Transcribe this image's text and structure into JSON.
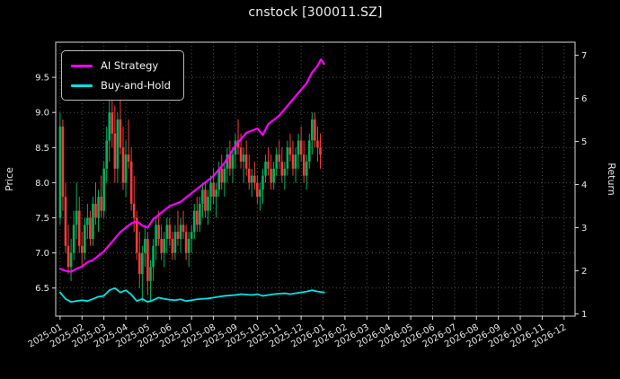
{
  "chart_data": {
    "type": "candlestick+line",
    "title": "cnstock [300011.SZ]",
    "left_axis": {
      "label": "Price",
      "ticks": [
        6.5,
        7.0,
        7.5,
        8.0,
        8.5,
        9.0,
        9.5
      ],
      "range": [
        6.1,
        10.0
      ]
    },
    "right_axis": {
      "label": "Return",
      "ticks": [
        1,
        2,
        3,
        4,
        5,
        6,
        7
      ],
      "range": [
        0.95,
        7.3
      ]
    },
    "x_axis": {
      "range_months": [
        -0.2,
        23.5
      ],
      "tick_labels": [
        "2025-01",
        "2025-02",
        "2025-03",
        "2025-04",
        "2025-05",
        "2025-06",
        "2025-07",
        "2025-08",
        "2025-09",
        "2025-10",
        "2025-11",
        "2025-12",
        "2026-01",
        "2026-02",
        "2026-03",
        "2026-04",
        "2026-05",
        "2026-06",
        "2026-07",
        "2026-08",
        "2026-09",
        "2026-10",
        "2026-11",
        "2026-12"
      ]
    },
    "legend": [
      {
        "label": "AI Strategy",
        "color": "#ff00ff"
      },
      {
        "label": "Buy-and-Hold",
        "color": "#00e5e5"
      }
    ],
    "colors": {
      "background": "#000000",
      "text": "#e8e8e8",
      "grid": "#5a5a5a",
      "spine": "#d9d9d9",
      "up": "#00b25e",
      "down": "#f33c3c"
    },
    "candles": [
      [
        0.0,
        7.5,
        9.0,
        7.4,
        8.8
      ],
      [
        0.125,
        8.8,
        8.9,
        7.6,
        7.8
      ],
      [
        0.25,
        7.8,
        8.0,
        7.0,
        7.1
      ],
      [
        0.375,
        7.1,
        7.4,
        6.7,
        6.8
      ],
      [
        0.5,
        6.8,
        7.2,
        6.6,
        7.0
      ],
      [
        0.625,
        7.0,
        7.6,
        6.9,
        7.4
      ],
      [
        0.75,
        7.4,
        8.0,
        7.2,
        7.6
      ],
      [
        0.875,
        7.6,
        7.8,
        7.0,
        7.1
      ],
      [
        1.0,
        7.1,
        7.3,
        6.8,
        7.0
      ],
      [
        1.125,
        7.0,
        7.5,
        6.9,
        7.4
      ],
      [
        1.25,
        7.4,
        7.7,
        7.2,
        7.5
      ],
      [
        1.375,
        7.5,
        7.6,
        7.1,
        7.2
      ],
      [
        1.5,
        7.2,
        7.8,
        7.1,
        7.7
      ],
      [
        1.625,
        7.7,
        8.0,
        7.4,
        7.5
      ],
      [
        1.75,
        7.5,
        7.9,
        7.3,
        7.8
      ],
      [
        1.875,
        7.8,
        8.1,
        7.5,
        7.6
      ],
      [
        2.0,
        7.6,
        8.3,
        7.5,
        8.2
      ],
      [
        2.125,
        8.2,
        8.8,
        8.0,
        8.6
      ],
      [
        2.25,
        8.6,
        9.2,
        8.3,
        9.0
      ],
      [
        2.375,
        9.0,
        9.4,
        8.5,
        8.7
      ],
      [
        2.5,
        8.7,
        9.1,
        8.0,
        8.2
      ],
      [
        2.625,
        8.2,
        9.0,
        8.0,
        8.9
      ],
      [
        2.75,
        8.9,
        9.3,
        8.4,
        8.5
      ],
      [
        2.875,
        8.5,
        8.8,
        7.9,
        8.0
      ],
      [
        3.0,
        8.0,
        8.6,
        7.8,
        8.4
      ],
      [
        3.125,
        8.4,
        8.9,
        8.2,
        8.3
      ],
      [
        3.25,
        8.3,
        8.5,
        7.6,
        7.7
      ],
      [
        3.375,
        7.7,
        8.1,
        7.3,
        7.5
      ],
      [
        3.5,
        7.5,
        7.6,
        6.9,
        7.0
      ],
      [
        3.625,
        7.0,
        7.3,
        6.5,
        6.7
      ],
      [
        3.75,
        6.7,
        7.1,
        6.3,
        7.0
      ],
      [
        3.875,
        7.0,
        7.4,
        6.8,
        7.2
      ],
      [
        4.0,
        7.2,
        7.3,
        6.4,
        6.6
      ],
      [
        4.125,
        6.6,
        6.9,
        6.3,
        6.8
      ],
      [
        4.25,
        6.8,
        7.2,
        6.6,
        7.1
      ],
      [
        4.375,
        7.1,
        7.5,
        6.9,
        7.4
      ],
      [
        4.5,
        7.4,
        7.6,
        7.1,
        7.2
      ],
      [
        4.625,
        7.2,
        7.4,
        6.9,
        7.0
      ],
      [
        4.75,
        7.0,
        7.3,
        6.8,
        7.2
      ],
      [
        4.875,
        7.2,
        7.5,
        7.0,
        7.4
      ],
      [
        5.0,
        7.4,
        7.5,
        7.1,
        7.2
      ],
      [
        5.125,
        7.2,
        7.3,
        6.9,
        7.0
      ],
      [
        5.25,
        7.0,
        7.4,
        6.9,
        7.3
      ],
      [
        5.375,
        7.3,
        7.6,
        7.1,
        7.2
      ],
      [
        5.5,
        7.2,
        7.5,
        7.0,
        7.4
      ],
      [
        5.625,
        7.4,
        7.6,
        7.2,
        7.3
      ],
      [
        5.75,
        7.3,
        7.4,
        6.9,
        7.0
      ],
      [
        5.875,
        7.0,
        7.3,
        6.8,
        7.2
      ],
      [
        6.0,
        7.2,
        7.4,
        7.0,
        7.3
      ],
      [
        6.125,
        7.3,
        7.7,
        7.2,
        7.6
      ],
      [
        6.25,
        7.6,
        7.8,
        7.3,
        7.4
      ],
      [
        6.375,
        7.4,
        7.8,
        7.3,
        7.7
      ],
      [
        6.5,
        7.7,
        8.0,
        7.5,
        7.9
      ],
      [
        6.625,
        7.9,
        8.0,
        7.5,
        7.6
      ],
      [
        6.75,
        7.6,
        7.9,
        7.4,
        7.8
      ],
      [
        6.875,
        7.8,
        8.1,
        7.6,
        8.0
      ],
      [
        7.0,
        8.0,
        8.2,
        7.7,
        7.8
      ],
      [
        7.125,
        7.8,
        8.0,
        7.5,
        7.9
      ],
      [
        7.25,
        7.9,
        8.3,
        7.8,
        8.2
      ],
      [
        7.375,
        8.2,
        8.4,
        7.9,
        8.0
      ],
      [
        7.5,
        8.0,
        8.3,
        7.8,
        8.2
      ],
      [
        7.625,
        8.2,
        8.5,
        8.0,
        8.4
      ],
      [
        7.75,
        8.4,
        8.6,
        8.1,
        8.2
      ],
      [
        7.875,
        8.2,
        8.5,
        8.0,
        8.4
      ],
      [
        8.0,
        8.4,
        8.7,
        8.2,
        8.6
      ],
      [
        8.125,
        8.6,
        8.9,
        8.4,
        8.5
      ],
      [
        8.25,
        8.5,
        8.7,
        8.2,
        8.3
      ],
      [
        8.375,
        8.3,
        8.5,
        8.0,
        8.4
      ],
      [
        8.5,
        8.4,
        8.6,
        8.1,
        8.2
      ],
      [
        8.625,
        8.2,
        8.4,
        7.9,
        8.0
      ],
      [
        8.75,
        8.0,
        8.2,
        7.8,
        8.1
      ],
      [
        8.875,
        8.1,
        8.3,
        7.9,
        8.0
      ],
      [
        9.0,
        8.0,
        8.1,
        7.7,
        7.8
      ],
      [
        9.125,
        7.8,
        8.0,
        7.6,
        7.9
      ],
      [
        9.25,
        7.9,
        8.2,
        7.7,
        8.1
      ],
      [
        9.375,
        8.1,
        8.4,
        8.0,
        8.3
      ],
      [
        9.5,
        8.3,
        8.5,
        8.1,
        8.2
      ],
      [
        9.625,
        8.2,
        8.4,
        7.9,
        8.0
      ],
      [
        9.75,
        8.0,
        8.3,
        7.9,
        8.2
      ],
      [
        9.875,
        8.2,
        8.5,
        8.1,
        8.4
      ],
      [
        10.0,
        8.4,
        8.6,
        8.2,
        8.3
      ],
      [
        10.125,
        8.3,
        8.5,
        8.0,
        8.1
      ],
      [
        10.25,
        8.1,
        8.3,
        7.9,
        8.2
      ],
      [
        10.375,
        8.2,
        8.6,
        8.1,
        8.5
      ],
      [
        10.5,
        8.5,
        8.7,
        8.3,
        8.4
      ],
      [
        10.625,
        8.4,
        8.6,
        8.1,
        8.2
      ],
      [
        10.75,
        8.2,
        8.5,
        8.0,
        8.4
      ],
      [
        10.875,
        8.4,
        8.7,
        8.2,
        8.6
      ],
      [
        11.0,
        8.6,
        8.8,
        8.3,
        8.4
      ],
      [
        11.125,
        8.4,
        8.6,
        8.0,
        8.1
      ],
      [
        11.25,
        8.1,
        8.4,
        7.9,
        8.3
      ],
      [
        11.375,
        8.3,
        8.7,
        8.2,
        8.6
      ],
      [
        11.5,
        8.6,
        9.0,
        8.4,
        8.9
      ],
      [
        11.625,
        8.9,
        9.0,
        8.5,
        8.6
      ],
      [
        11.75,
        8.6,
        8.8,
        8.3,
        8.5
      ],
      [
        11.875,
        8.5,
        8.7,
        8.2,
        8.4
      ]
    ],
    "series": [
      {
        "name": "AI Strategy",
        "axis": "right",
        "color": "#ff00ff",
        "width": 2.2,
        "points": [
          [
            0,
            2.05
          ],
          [
            0.25,
            2.0
          ],
          [
            0.5,
            1.98
          ],
          [
            0.75,
            2.05
          ],
          [
            1,
            2.1
          ],
          [
            1.25,
            2.2
          ],
          [
            1.5,
            2.25
          ],
          [
            1.75,
            2.35
          ],
          [
            2,
            2.45
          ],
          [
            2.25,
            2.6
          ],
          [
            2.5,
            2.75
          ],
          [
            2.75,
            2.9
          ],
          [
            3,
            3.0
          ],
          [
            3.25,
            3.1
          ],
          [
            3.5,
            3.15
          ],
          [
            3.75,
            3.05
          ],
          [
            4,
            3.0
          ],
          [
            4.25,
            3.2
          ],
          [
            4.5,
            3.3
          ],
          [
            4.75,
            3.4
          ],
          [
            5,
            3.5
          ],
          [
            5.25,
            3.55
          ],
          [
            5.5,
            3.6
          ],
          [
            5.75,
            3.7
          ],
          [
            6,
            3.8
          ],
          [
            6.25,
            3.9
          ],
          [
            6.5,
            4.0
          ],
          [
            6.75,
            4.1
          ],
          [
            7,
            4.2
          ],
          [
            7.25,
            4.35
          ],
          [
            7.5,
            4.5
          ],
          [
            7.75,
            4.7
          ],
          [
            8,
            4.9
          ],
          [
            8.25,
            5.05
          ],
          [
            8.5,
            5.2
          ],
          [
            8.75,
            5.25
          ],
          [
            9,
            5.3
          ],
          [
            9.25,
            5.15
          ],
          [
            9.5,
            5.4
          ],
          [
            9.75,
            5.5
          ],
          [
            10,
            5.6
          ],
          [
            10.25,
            5.75
          ],
          [
            10.5,
            5.9
          ],
          [
            10.75,
            6.05
          ],
          [
            11,
            6.2
          ],
          [
            11.25,
            6.35
          ],
          [
            11.5,
            6.6
          ],
          [
            11.75,
            6.75
          ],
          [
            11.9,
            6.9
          ],
          [
            12.05,
            6.8
          ]
        ]
      },
      {
        "name": "Buy-and-Hold",
        "axis": "right",
        "color": "#00e5e5",
        "width": 1.8,
        "points": [
          [
            0,
            1.5
          ],
          [
            0.25,
            1.35
          ],
          [
            0.5,
            1.28
          ],
          [
            0.75,
            1.3
          ],
          [
            1,
            1.32
          ],
          [
            1.25,
            1.3
          ],
          [
            1.5,
            1.35
          ],
          [
            1.75,
            1.4
          ],
          [
            2,
            1.42
          ],
          [
            2.25,
            1.55
          ],
          [
            2.5,
            1.6
          ],
          [
            2.75,
            1.5
          ],
          [
            3,
            1.55
          ],
          [
            3.25,
            1.45
          ],
          [
            3.5,
            1.3
          ],
          [
            3.75,
            1.35
          ],
          [
            4,
            1.28
          ],
          [
            4.25,
            1.32
          ],
          [
            4.5,
            1.38
          ],
          [
            4.75,
            1.35
          ],
          [
            5,
            1.33
          ],
          [
            5.25,
            1.32
          ],
          [
            5.5,
            1.34
          ],
          [
            5.75,
            1.3
          ],
          [
            6,
            1.32
          ],
          [
            6.25,
            1.34
          ],
          [
            6.5,
            1.35
          ],
          [
            6.75,
            1.36
          ],
          [
            7,
            1.38
          ],
          [
            7.25,
            1.4
          ],
          [
            7.5,
            1.42
          ],
          [
            7.75,
            1.43
          ],
          [
            8,
            1.44
          ],
          [
            8.25,
            1.46
          ],
          [
            8.5,
            1.45
          ],
          [
            8.75,
            1.44
          ],
          [
            9,
            1.46
          ],
          [
            9.25,
            1.42
          ],
          [
            9.5,
            1.44
          ],
          [
            9.75,
            1.46
          ],
          [
            10,
            1.47
          ],
          [
            10.25,
            1.48
          ],
          [
            10.5,
            1.46
          ],
          [
            10.75,
            1.48
          ],
          [
            11,
            1.5
          ],
          [
            11.25,
            1.52
          ],
          [
            11.5,
            1.55
          ],
          [
            11.75,
            1.52
          ],
          [
            12.05,
            1.5
          ]
        ]
      }
    ]
  }
}
